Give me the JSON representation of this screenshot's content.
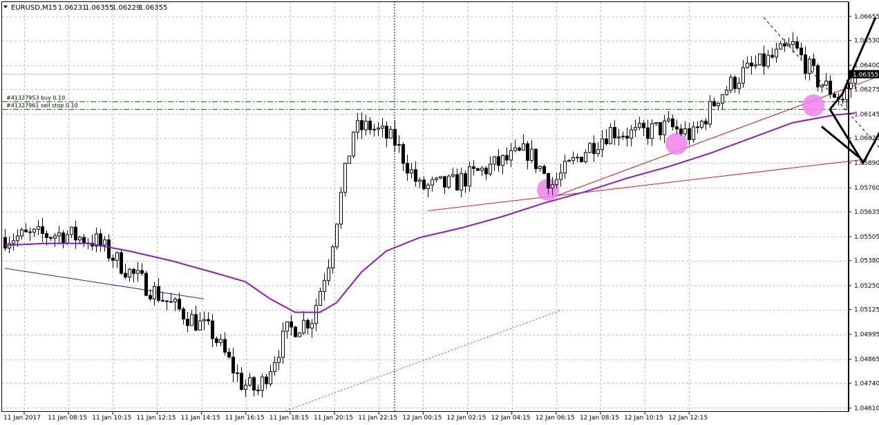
{
  "header": {
    "symbol": "EURUSD,M15",
    "ohlc": [
      "1.06231",
      "1.06355",
      "1.06229",
      "1.06355"
    ]
  },
  "orders": [
    {
      "label": "#41327953 buy 0.10",
      "price": 1.0621
    },
    {
      "label": "#41327961 sell stop 0.10",
      "price": 1.0617
    }
  ],
  "current_price": {
    "label": "1.06355",
    "value": 1.06355
  },
  "colors": {
    "grid": "#c0c0c0",
    "candle": "#000000",
    "ma": "#8e17c4",
    "order_line": "#007700",
    "trend_red": "#c81e1e",
    "trend_blue": "#1a2ba8",
    "marker": "#ee82ee",
    "price_line": "#c0c0c0"
  },
  "chart_data": {
    "type": "candlestick",
    "timeframe": "M15",
    "ylim": [
      1.0459,
      1.0673
    ],
    "y_ticks": [
      "1.06655",
      "1.06530",
      "1.06400",
      "1.06275",
      "1.06145",
      "1.06020",
      "1.05890",
      "1.05760",
      "1.05635",
      "1.05505",
      "1.05380",
      "1.05250",
      "1.05125",
      "1.04995",
      "1.04865",
      "1.04740",
      "1.04610"
    ],
    "x_ticks": [
      "11 Jan 2017",
      "11 Jan 08:15",
      "11 Jan 10:15",
      "11 Jan 12:15",
      "11 Jan 14:15",
      "11 Jan 16:15",
      "11 Jan 18:15",
      "11 Jan 20:15",
      "11 Jan 22:15",
      "12 Jan 00:15",
      "12 Jan 02:15",
      "12 Jan 04:15",
      "12 Jan 06:15",
      "12 Jan 08:15",
      "12 Jan 10:15",
      "12 Jan 12:15"
    ],
    "anchors": [
      {
        "bar": 0,
        "open": 1.055,
        "close": 1.055
      },
      {
        "bar": 14,
        "open": 1.0552,
        "close": 1.0552
      },
      {
        "bar": 22,
        "open": 1.0548,
        "close": 1.0548
      },
      {
        "bar": 30,
        "open": 1.0532,
        "close": 1.0532
      },
      {
        "bar": 40,
        "open": 1.0515,
        "close": 1.0515
      },
      {
        "bar": 50,
        "open": 1.05,
        "close": 1.05
      },
      {
        "bar": 57,
        "open": 1.0474,
        "close": 1.0474
      },
      {
        "bar": 61,
        "open": 1.047,
        "close": 1.047
      },
      {
        "bar": 68,
        "open": 1.0501,
        "close": 1.0501
      },
      {
        "bar": 74,
        "open": 1.0508,
        "close": 1.0508
      },
      {
        "bar": 78,
        "open": 1.0538,
        "close": 1.0538
      },
      {
        "bar": 84,
        "open": 1.0606,
        "close": 1.0606
      },
      {
        "bar": 88,
        "open": 1.0608,
        "close": 1.0608
      },
      {
        "bar": 94,
        "open": 1.06,
        "close": 1.06
      },
      {
        "bar": 100,
        "open": 1.0576,
        "close": 1.0576
      },
      {
        "bar": 108,
        "open": 1.0578,
        "close": 1.0578
      },
      {
        "bar": 116,
        "open": 1.0586,
        "close": 1.0586
      },
      {
        "bar": 126,
        "open": 1.0595,
        "close": 1.0595
      },
      {
        "bar": 132,
        "open": 1.0578,
        "close": 1.0578
      },
      {
        "bar": 140,
        "open": 1.0596,
        "close": 1.0596
      },
      {
        "bar": 146,
        "open": 1.0606,
        "close": 1.0606
      },
      {
        "bar": 152,
        "open": 1.0604,
        "close": 1.0604
      },
      {
        "bar": 160,
        "open": 1.0608,
        "close": 1.0608
      },
      {
        "bar": 166,
        "open": 1.0603,
        "close": 1.0603
      },
      {
        "bar": 172,
        "open": 1.0624,
        "close": 1.0624
      },
      {
        "bar": 178,
        "open": 1.0636,
        "close": 1.0636
      },
      {
        "bar": 186,
        "open": 1.0645,
        "close": 1.0645
      },
      {
        "bar": 190,
        "open": 1.065,
        "close": 1.065
      },
      {
        "bar": 196,
        "open": 1.0632,
        "close": 1.0632
      },
      {
        "bar": 202,
        "open": 1.0622,
        "close": 1.0622
      },
      {
        "bar": 205,
        "open": 1.06355,
        "close": 1.06355
      }
    ],
    "moving_average_points": [
      {
        "bar": 0,
        "value": 1.0546
      },
      {
        "bar": 10,
        "value": 1.0547
      },
      {
        "bar": 20,
        "value": 1.0547
      },
      {
        "bar": 30,
        "value": 1.0543
      },
      {
        "bar": 40,
        "value": 1.0538
      },
      {
        "bar": 50,
        "value": 1.0532
      },
      {
        "bar": 58,
        "value": 1.0527
      },
      {
        "bar": 64,
        "value": 1.0518
      },
      {
        "bar": 70,
        "value": 1.0511
      },
      {
        "bar": 76,
        "value": 1.0511
      },
      {
        "bar": 80,
        "value": 1.0516
      },
      {
        "bar": 86,
        "value": 1.0532
      },
      {
        "bar": 92,
        "value": 1.0543
      },
      {
        "bar": 100,
        "value": 1.055
      },
      {
        "bar": 110,
        "value": 1.0555
      },
      {
        "bar": 120,
        "value": 1.0561
      },
      {
        "bar": 130,
        "value": 1.0568
      },
      {
        "bar": 140,
        "value": 1.0574
      },
      {
        "bar": 150,
        "value": 1.0581
      },
      {
        "bar": 160,
        "value": 1.0587
      },
      {
        "bar": 170,
        "value": 1.0594
      },
      {
        "bar": 180,
        "value": 1.0602
      },
      {
        "bar": 190,
        "value": 1.061
      },
      {
        "bar": 200,
        "value": 1.0614
      },
      {
        "bar": 205,
        "value": 1.0615
      }
    ],
    "trend_lines": [
      {
        "name": "support-red",
        "color": "#c81e1e",
        "style": "solid",
        "from": {
          "bar": 102,
          "price": 1.0564
        },
        "to": {
          "bar": 208,
          "price": 1.0591
        }
      },
      {
        "name": "rising-brown",
        "color": "#b22222",
        "style": "solid",
        "from": {
          "bar": 132,
          "price": 1.0571
        },
        "to": {
          "bar": 213,
          "price": 1.0636
        }
      },
      {
        "name": "down-blue",
        "color": "#1a2ba8",
        "style": "solid",
        "from": {
          "bar": 0,
          "price": 1.0534
        },
        "to": {
          "bar": 48,
          "price": 1.0518
        }
      },
      {
        "name": "dotted-red",
        "color": "#e02020",
        "style": "dotted",
        "from": {
          "bar": 67,
          "price": 1.0459
        },
        "to": {
          "bar": 134,
          "price": 1.0512
        }
      },
      {
        "name": "dashed-black",
        "color": "#000000",
        "style": "dashed",
        "from": {
          "bar": 183,
          "price": 1.0665
        },
        "to": {
          "bar": 215,
          "price": 1.0587
        }
      }
    ],
    "markers": [
      {
        "bar": 131,
        "price": 1.0575
      },
      {
        "bar": 162,
        "price": 1.0599
      },
      {
        "bar": 195,
        "price": 1.0619
      }
    ],
    "scenario_arrows": [
      {
        "name": "bullish-path",
        "points": [
          {
            "bar": 199,
            "price": 1.0617
          },
          {
            "bar": 202,
            "price": 1.0625
          },
          {
            "bar": 210,
            "price": 1.0665
          }
        ]
      },
      {
        "name": "bearish-path",
        "points": [
          {
            "bar": 199,
            "price": 1.0617
          },
          {
            "bar": 207,
            "price": 1.0589
          },
          {
            "bar": 212,
            "price": 1.0609
          }
        ]
      },
      {
        "name": "bearish-stroke",
        "points": [
          {
            "bar": 197,
            "price": 1.0608
          },
          {
            "bar": 206,
            "price": 1.0592
          }
        ]
      }
    ],
    "grid": true
  }
}
